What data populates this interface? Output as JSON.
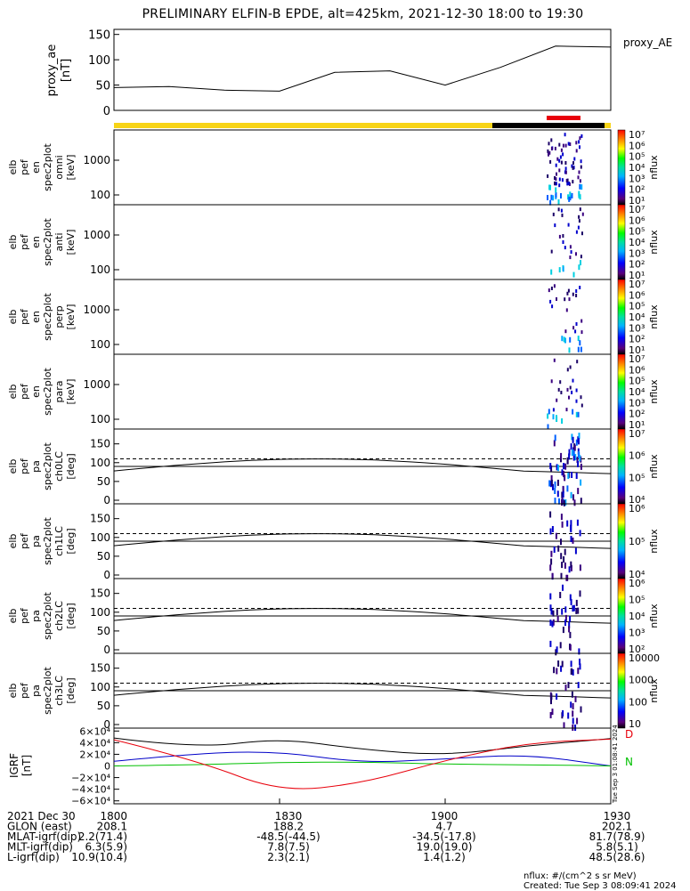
{
  "title": "PRELIMINARY ELFIN-B EPDE, alt=425km, 2021-12-30 18:00 to 19:30",
  "colors": {
    "science_bar": "#f7d417",
    "eclipse_bar": "#000000",
    "red_marker": "#e8000b",
    "grf_d": "#e8000b",
    "grf_n": "#00c000",
    "grf_e": "#0000c8"
  },
  "time_ticks": [
    "1800",
    "1830",
    "1900",
    "1930"
  ],
  "proxy_ae": {
    "label": "proxy_ae",
    "unit": "[nT]",
    "legend": "proxy_AE",
    "yticks": [
      "150",
      "100",
      "50",
      "0"
    ],
    "ylim": [
      0,
      160
    ]
  },
  "spec_panels": [
    {
      "label_lines": [
        "elb",
        "pef",
        "en",
        "spec2plot",
        "omni",
        "[keV]"
      ],
      "yticks": [
        "1000",
        "100"
      ],
      "cbar_ticks": [
        "10⁷",
        "10⁶",
        "10⁵",
        "10⁴",
        "10³",
        "10²",
        "10¹"
      ],
      "cbar_label": "nflux"
    },
    {
      "label_lines": [
        "elb",
        "pef",
        "en",
        "spec2plot",
        "anti",
        "[keV]"
      ],
      "yticks": [
        "1000",
        "100"
      ],
      "cbar_ticks": [
        "10⁷",
        "10⁶",
        "10⁵",
        "10⁴",
        "10³",
        "10²",
        "10¹"
      ],
      "cbar_label": "nflux"
    },
    {
      "label_lines": [
        "elb",
        "pef",
        "en",
        "spec2plot",
        "perp",
        "[keV]"
      ],
      "yticks": [
        "1000",
        "100"
      ],
      "cbar_ticks": [
        "10⁷",
        "10⁶",
        "10⁵",
        "10⁴",
        "10³",
        "10²",
        "10¹"
      ],
      "cbar_label": "nflux"
    },
    {
      "label_lines": [
        "elb",
        "pef",
        "en",
        "spec2plot",
        "para",
        "[keV]"
      ],
      "yticks": [
        "1000",
        "100"
      ],
      "cbar_ticks": [
        "10⁷",
        "10⁶",
        "10⁵",
        "10⁴",
        "10³",
        "10²",
        "10¹"
      ],
      "cbar_label": "nflux"
    }
  ],
  "pa_panels": [
    {
      "label_lines": [
        "elb",
        "pef",
        "pa",
        "spec2plot",
        "ch0LC",
        "[deg]"
      ],
      "yticks": [
        "150",
        "100",
        "50",
        "0"
      ],
      "cbar_ticks": [
        "10⁷",
        "10⁶",
        "10⁵",
        "10⁴"
      ],
      "cbar_label": "nflux"
    },
    {
      "label_lines": [
        "elb",
        "pef",
        "pa",
        "spec2plot",
        "ch1LC",
        "[deg]"
      ],
      "yticks": [
        "150",
        "100",
        "50",
        "0"
      ],
      "cbar_ticks": [
        "10⁶",
        "10⁵",
        "10⁴"
      ],
      "cbar_label": "nflux"
    },
    {
      "label_lines": [
        "elb",
        "pef",
        "pa",
        "spec2plot",
        "ch2LC",
        "[deg]"
      ],
      "yticks": [
        "150",
        "100",
        "50",
        "0"
      ],
      "cbar_ticks": [
        "10⁶",
        "10⁵",
        "10⁴",
        "10³",
        "10²"
      ],
      "cbar_label": "nflux"
    },
    {
      "label_lines": [
        "elb",
        "pef",
        "pa",
        "spec2plot",
        "ch3LC",
        "[deg]"
      ],
      "yticks": [
        "150",
        "100",
        "50",
        "0"
      ],
      "cbar_ticks": [
        "10000",
        "1000",
        "100",
        "10"
      ],
      "cbar_label": "nflux"
    }
  ],
  "grf": {
    "label": "IGRF",
    "unit": "[nT]",
    "yticks": [
      "6×10⁴",
      "4×10⁴",
      "2×10⁴",
      "0",
      "−2×10⁴",
      "−4×10⁴",
      "−6×10⁴"
    ],
    "legend_d": "D",
    "legend_n": "N",
    "side_text": "Tue Sep 3 01:08:41 2024"
  },
  "footer": {
    "rows": [
      [
        "2021 Dec 30",
        "1800",
        "1830",
        "1900",
        "1930"
      ],
      [
        "GLON (east)",
        "208.1",
        "188.2",
        "4.7",
        "202.1"
      ],
      [
        "MLAT-igrf(dip)",
        "2.2(71.4)",
        "-48.5(-44.5)",
        "-34.5(-17.8)",
        "81.7(78.9)"
      ],
      [
        "MLT-igrf(dip)",
        "6.3(5.9)",
        "7.8(7.5)",
        "19.0(19.0)",
        "5.8(5.1)"
      ],
      [
        "L-igrf(dip)",
        "10.9(10.4)",
        "2.3(2.1)",
        "1.4(1.2)",
        "48.5(28.6)"
      ]
    ],
    "units_note": "nflux: #/(cm^2 s sr MeV)",
    "created": "Created: Tue Sep  3 08:09:41 2024"
  },
  "chart_data": [
    {
      "type": "line",
      "ylabel": "proxy_ae [nT]",
      "x": [
        "18:00",
        "18:10",
        "18:20",
        "18:30",
        "18:40",
        "18:50",
        "19:00",
        "19:10",
        "19:20",
        "19:30"
      ],
      "series": [
        {
          "name": "proxy_AE",
          "values": [
            45,
            47,
            40,
            38,
            75,
            78,
            50,
            85,
            127,
            125
          ]
        }
      ],
      "ylim": [
        0,
        160
      ]
    },
    {
      "type": "line",
      "ylabel": "IGRF [nT]",
      "x": [
        "18:00",
        "18:15",
        "18:30",
        "18:45",
        "19:00",
        "19:15",
        "19:30"
      ],
      "series": [
        {
          "name": "black",
          "values": [
            48000,
            30000,
            48000,
            28000,
            18000,
            35000,
            47000
          ]
        },
        {
          "name": "blue",
          "values": [
            8000,
            22000,
            25000,
            5000,
            12000,
            20000,
            0
          ]
        },
        {
          "name": "green",
          "values": [
            0,
            2000,
            6000,
            7000,
            3000,
            2000,
            0
          ]
        },
        {
          "name": "D",
          "values": [
            45000,
            10000,
            -45000,
            -30000,
            10000,
            40000,
            46000
          ]
        }
      ],
      "ylim": [
        -65000,
        65000
      ]
    }
  ]
}
